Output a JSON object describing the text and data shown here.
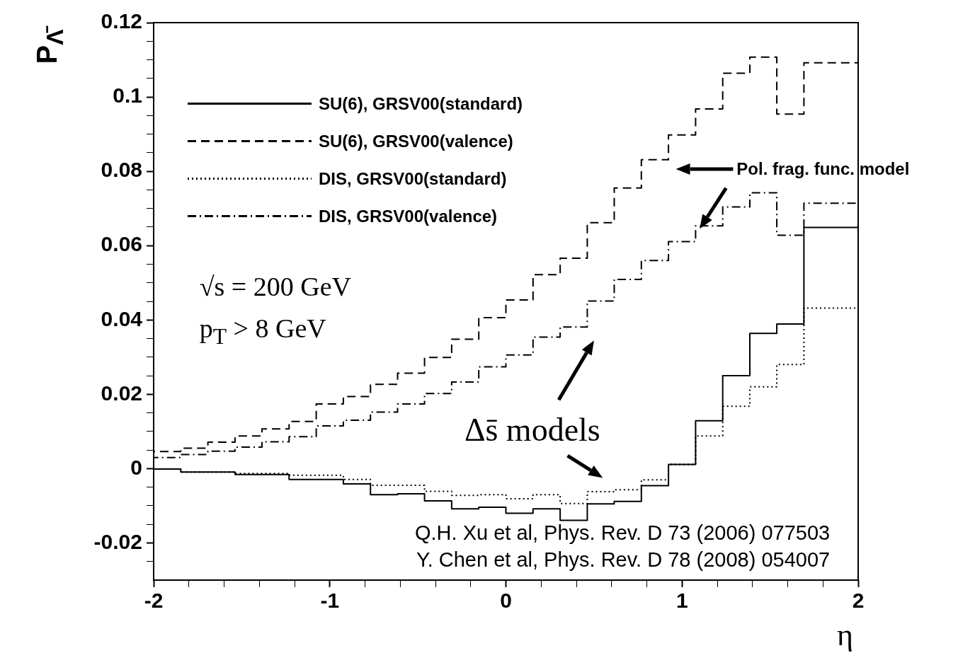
{
  "chart_data": {
    "type": "step",
    "xlabel": "η",
    "ylabel": "P$_{Λ̄}$",
    "x": [
      -2,
      -1.846,
      -1.692,
      -1.538,
      -1.385,
      -1.231,
      -1.077,
      -0.923,
      -0.769,
      -0.615,
      -0.462,
      -0.308,
      -0.154,
      0,
      0.154,
      0.308,
      0.462,
      0.615,
      0.769,
      0.923,
      1.077,
      1.231,
      1.385,
      1.538,
      1.692,
      1.846,
      2
    ],
    "series": [
      {
        "name": "SU(6), GRSV00(standard)",
        "color": "#000000",
        "line_style": "solid",
        "values": [
          0.0005,
          -0.0001,
          -0.0009,
          -0.0009,
          -0.0016,
          -0.0016,
          -0.0029,
          -0.0029,
          -0.0041,
          -0.007,
          -0.0068,
          -0.0087,
          -0.0108,
          -0.0104,
          -0.012,
          -0.0108,
          -0.0139,
          -0.0095,
          -0.0088,
          -0.0046,
          0.0011,
          0.0129,
          0.025,
          0.0364,
          0.0389,
          0.0649,
          0.0649
        ]
      },
      {
        "name": "SU(6), GRSV00(valence)",
        "color": "#000000",
        "line_style": "dashed",
        "values": [
          0.0027,
          0.0046,
          0.0055,
          0.0071,
          0.0088,
          0.0107,
          0.0127,
          0.0174,
          0.0194,
          0.0227,
          0.0257,
          0.0299,
          0.0348,
          0.0406,
          0.0454,
          0.0522,
          0.0566,
          0.0662,
          0.0755,
          0.0831,
          0.0898,
          0.0968,
          0.1064,
          0.1107,
          0.0954,
          0.1092,
          0.1092
        ]
      },
      {
        "name": "DIS, GRSV00(standard)",
        "color": "#000000",
        "line_style": "dotted",
        "values": [
          0.0007,
          -0.0001,
          -0.0009,
          -0.0009,
          -0.0013,
          -0.0013,
          -0.0018,
          -0.0018,
          -0.0029,
          -0.0045,
          -0.0045,
          -0.0061,
          -0.0072,
          -0.007,
          -0.0081,
          -0.007,
          -0.0094,
          -0.0062,
          -0.0057,
          -0.003,
          0.0011,
          0.0088,
          0.0168,
          0.022,
          0.028,
          0.0432,
          0.0432
        ]
      },
      {
        "name": "DIS, GRSV00(valence)",
        "color": "#000000",
        "line_style": "dashdot",
        "values": [
          0.002,
          0.003,
          0.0038,
          0.0047,
          0.0058,
          0.0072,
          0.0086,
          0.0115,
          0.013,
          0.0152,
          0.0174,
          0.0202,
          0.0233,
          0.0274,
          0.0306,
          0.0354,
          0.0381,
          0.0451,
          0.0509,
          0.056,
          0.0611,
          0.0653,
          0.0704,
          0.0742,
          0.0628,
          0.0714,
          0.0714
        ]
      }
    ],
    "xlim": [
      -2,
      2
    ],
    "xticks": [
      -2,
      {
        "value": -1.8,
        "label": null
      },
      {
        "value": -1.6,
        "label": null
      },
      {
        "value": -1.4,
        "label": null
      },
      {
        "value": -1.2,
        "label": null
      },
      -1,
      {
        "value": -0.8,
        "label": null
      },
      {
        "value": -0.6,
        "label": null
      },
      {
        "value": -0.4,
        "label": null
      },
      {
        "value": -0.2,
        "label": null
      },
      0,
      {
        "value": 0.2,
        "label": null
      },
      {
        "value": 0.4,
        "label": null
      },
      {
        "value": 0.6,
        "label": null
      },
      {
        "value": 0.8,
        "label": null
      },
      1,
      {
        "value": 1.2,
        "label": null
      },
      {
        "value": 1.4,
        "label": null
      },
      {
        "value": 1.6,
        "label": null
      },
      {
        "value": 1.8,
        "label": null
      },
      2
    ],
    "ylim": [
      -0.03,
      0.12
    ],
    "yticks": [
      {
        "value": -0.025,
        "label": null
      },
      -0.02,
      {
        "value": -0.015,
        "label": null
      },
      {
        "value": -0.01,
        "label": null
      },
      {
        "value": -0.005,
        "label": null
      },
      0,
      {
        "value": 0.005,
        "label": null
      },
      {
        "value": 0.01,
        "label": null
      },
      {
        "value": 0.015,
        "label": null
      },
      0.02,
      {
        "value": 0.025,
        "label": null
      },
      {
        "value": 0.03,
        "label": null
      },
      {
        "value": 0.035,
        "label": null
      },
      0.04,
      {
        "value": 0.045,
        "label": null
      },
      {
        "value": 0.05,
        "label": null
      },
      {
        "value": 0.055,
        "label": null
      },
      0.06,
      {
        "value": 0.065,
        "label": null
      },
      {
        "value": 0.07,
        "label": null
      },
      {
        "value": 0.075,
        "label": null
      },
      0.08,
      {
        "value": 0.085,
        "label": null
      },
      {
        "value": 0.09,
        "label": null
      },
      {
        "value": 0.095,
        "label": null
      },
      0.1,
      {
        "value": 0.105,
        "label": null
      },
      {
        "value": 0.11,
        "label": null
      },
      {
        "value": 0.115,
        "label": null
      },
      0.12
    ],
    "grid": false,
    "legend": "top left",
    "marker": "none",
    "annotations": [
      "Pol. frag. func. model",
      "Δs̄ models",
      "√s = 200 GeV",
      "p$_{T}$ > 8 GeV",
      "Q.H. Xu et al, Phys. Rev. D 73 (2006) 077503",
      "Y. Chen et al, Phys. Rev. D 78 (2008) 054007"
    ]
  }
}
